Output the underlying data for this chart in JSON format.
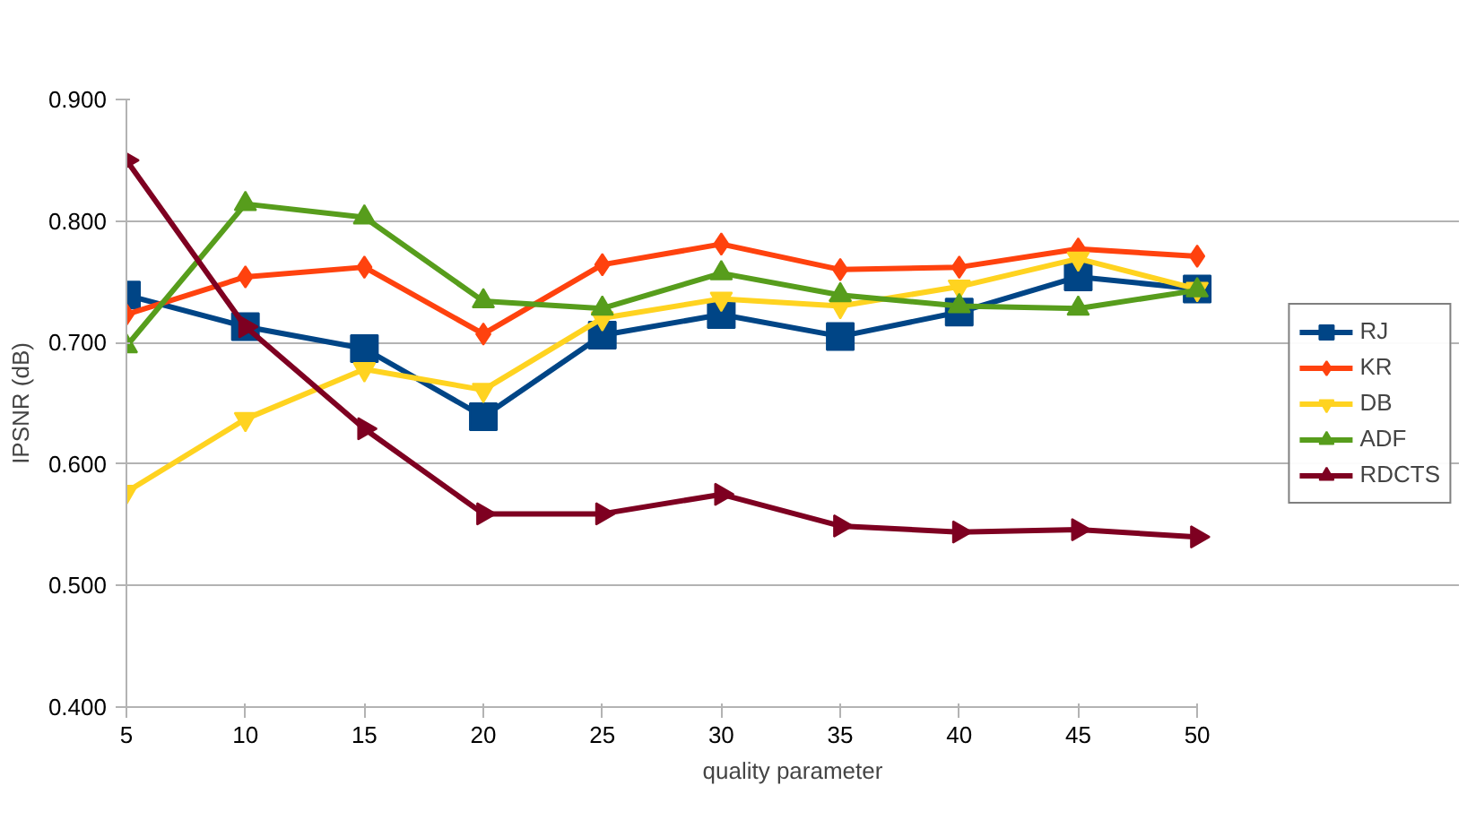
{
  "chart_data": {
    "type": "line",
    "xlabel": "quality parameter",
    "ylabel": "IPSNR (dB)",
    "categories": [
      "5",
      "10",
      "15",
      "20",
      "25",
      "30",
      "35",
      "40",
      "45",
      "50"
    ],
    "ylim": [
      0.4,
      0.9
    ],
    "yticks": [
      {
        "value": 0.4,
        "label": "0.400"
      },
      {
        "value": 0.5,
        "label": "0.500"
      },
      {
        "value": 0.6,
        "label": "0.600"
      },
      {
        "value": 0.7,
        "label": "0.700"
      },
      {
        "value": 0.8,
        "label": "0.800"
      },
      {
        "value": 0.9,
        "label": "0.900"
      }
    ],
    "grid": "y",
    "legend": "right",
    "series": [
      {
        "name": "RJ",
        "color": "#004586",
        "marker": "square",
        "values": [
          0.739,
          0.713,
          0.695,
          0.639,
          0.706,
          0.723,
          0.705,
          0.725,
          0.754,
          0.744
        ]
      },
      {
        "name": "KR",
        "color": "#ff420e",
        "marker": "diamond",
        "values": [
          0.723,
          0.754,
          0.762,
          0.707,
          0.764,
          0.781,
          0.76,
          0.762,
          0.777,
          0.771
        ]
      },
      {
        "name": "DB",
        "color": "#ffd320",
        "marker": "triangle_down",
        "values": [
          0.577,
          0.637,
          0.678,
          0.661,
          0.72,
          0.736,
          0.73,
          0.746,
          0.769,
          0.744
        ]
      },
      {
        "name": "ADF",
        "color": "#579d1c",
        "marker": "triangle",
        "values": [
          0.697,
          0.814,
          0.803,
          0.734,
          0.728,
          0.757,
          0.739,
          0.73,
          0.728,
          0.743
        ]
      },
      {
        "name": "RDCTS",
        "color": "#7e0021",
        "marker": "triangle_right",
        "values": [
          0.85,
          0.713,
          0.629,
          0.559,
          0.559,
          0.575,
          0.549,
          0.544,
          0.546,
          0.54
        ]
      }
    ]
  }
}
